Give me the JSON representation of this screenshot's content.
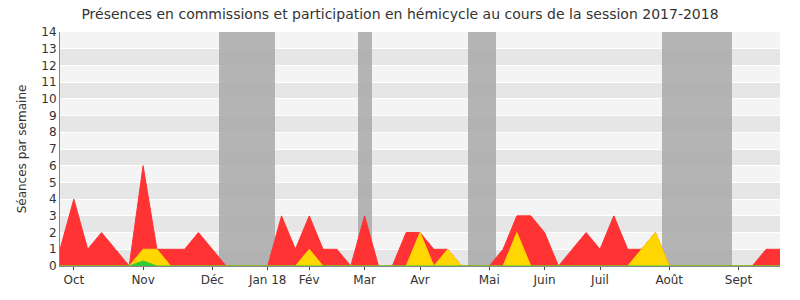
{
  "chart_data": {
    "type": "area",
    "title": "Présences en commissions et participation en hémicycle au cours de la session 2017-2018",
    "y_label": "Séances par semaine",
    "categories": [
      null,
      "Oct",
      null,
      null,
      null,
      null,
      "Nov",
      null,
      null,
      null,
      null,
      "Déc",
      null,
      null,
      null,
      "Jan 18",
      null,
      null,
      "Fév",
      null,
      null,
      null,
      "Mar",
      null,
      null,
      null,
      "Avr",
      null,
      null,
      null,
      null,
      "Mai",
      null,
      null,
      null,
      "Juin",
      null,
      null,
      null,
      "Juil",
      null,
      null,
      null,
      null,
      "Août",
      null,
      null,
      null,
      null,
      "Sept",
      null,
      null,
      null
    ],
    "series": [
      {
        "type": "bar",
        "color": "#aaaaaa",
        "values": [
          null,
          null,
          null,
          null,
          null,
          null,
          null,
          null,
          null,
          null,
          null,
          null,
          14,
          14,
          14,
          14,
          null,
          null,
          null,
          null,
          null,
          null,
          14,
          null,
          null,
          null,
          null,
          null,
          null,
          null,
          14,
          14,
          null,
          null,
          null,
          null,
          null,
          null,
          null,
          null,
          null,
          null,
          null,
          null,
          14,
          14,
          14,
          14,
          14,
          null,
          null,
          null,
          null
        ]
      },
      {
        "type": "area",
        "color": "#ff3333",
        "values": [
          1,
          4,
          1,
          2,
          1,
          0,
          6,
          1,
          1,
          1,
          2,
          1,
          0,
          0,
          0,
          0,
          3,
          1,
          3,
          1,
          1,
          0,
          3,
          0,
          0,
          2,
          2,
          1,
          1,
          0,
          0,
          0,
          1,
          3,
          3,
          2,
          0,
          1,
          2,
          1,
          3,
          1,
          1,
          2,
          0,
          0,
          0,
          0,
          0,
          0,
          0,
          1,
          1
        ]
      },
      {
        "type": "area",
        "color": "#ffd700",
        "values": [
          0,
          0,
          0,
          0,
          0,
          0,
          1,
          1,
          0,
          0,
          0,
          0,
          0,
          0,
          0,
          0,
          0,
          0,
          1,
          0,
          0,
          0,
          0,
          0,
          0,
          0,
          2,
          0,
          1,
          0,
          0,
          0,
          0,
          2,
          0,
          0,
          0,
          0,
          0,
          0,
          0,
          0,
          1,
          2,
          0,
          0,
          0,
          0,
          0,
          0,
          0,
          0,
          0
        ]
      },
      {
        "type": "area",
        "color": "#33cc33",
        "values": [
          0,
          0,
          0,
          0,
          0,
          0,
          0.3,
          0,
          0,
          0,
          0,
          0,
          0,
          0,
          0,
          0,
          0,
          0,
          0,
          0,
          0,
          0,
          0,
          0,
          0,
          0,
          0,
          0,
          0,
          0,
          0,
          0,
          0,
          0,
          0,
          0,
          0,
          0,
          0,
          0,
          0,
          0,
          0,
          0,
          0,
          0,
          0,
          0,
          0,
          0,
          0,
          0,
          0
        ]
      }
    ],
    "stacked": false,
    "ylim": [
      0,
      14
    ],
    "yticks": [
      0,
      1,
      2,
      3,
      4,
      5,
      6,
      7,
      8,
      9,
      10,
      11,
      12,
      13,
      14
    ],
    "grid": true
  }
}
